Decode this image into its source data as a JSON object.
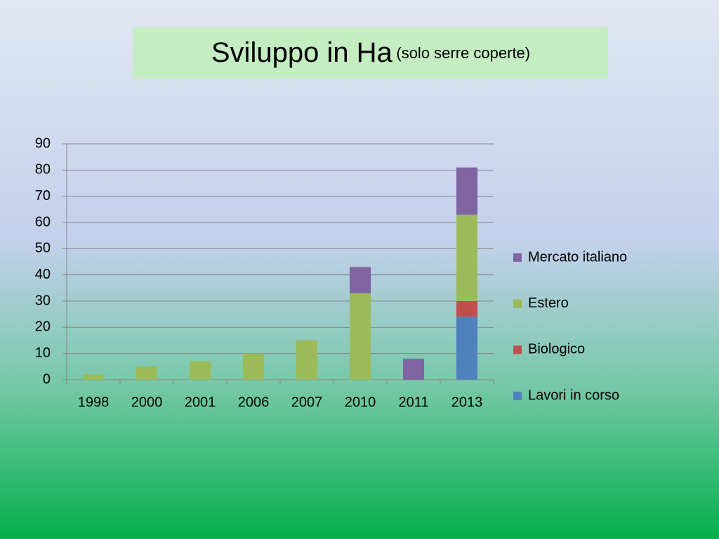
{
  "chart_data": {
    "type": "stacked_bar",
    "title": "Sviluppo in Ha",
    "subtitle": "(solo serre coperte)",
    "categories": [
      "1998",
      "2000",
      "2001",
      "2006",
      "2007",
      "2010",
      "2011",
      "2013"
    ],
    "series": [
      {
        "name": "Lavori in corso",
        "color": "#4f81bd",
        "values": [
          null,
          null,
          null,
          null,
          null,
          null,
          null,
          24
        ]
      },
      {
        "name": "Biologico",
        "color": "#c0504d",
        "values": [
          null,
          null,
          null,
          null,
          null,
          null,
          null,
          6
        ]
      },
      {
        "name": "Estero",
        "color": "#9bbb59",
        "values": [
          2,
          5,
          7,
          10,
          15,
          33,
          null,
          33
        ]
      },
      {
        "name": "Mercato italiano",
        "color": "#8064a2",
        "values": [
          null,
          null,
          null,
          null,
          null,
          10,
          8,
          18
        ]
      }
    ],
    "ylim": [
      0,
      90
    ],
    "yticks": [
      0,
      10,
      20,
      30,
      40,
      50,
      60,
      70,
      80,
      90
    ],
    "grid": true,
    "legend": "right"
  }
}
